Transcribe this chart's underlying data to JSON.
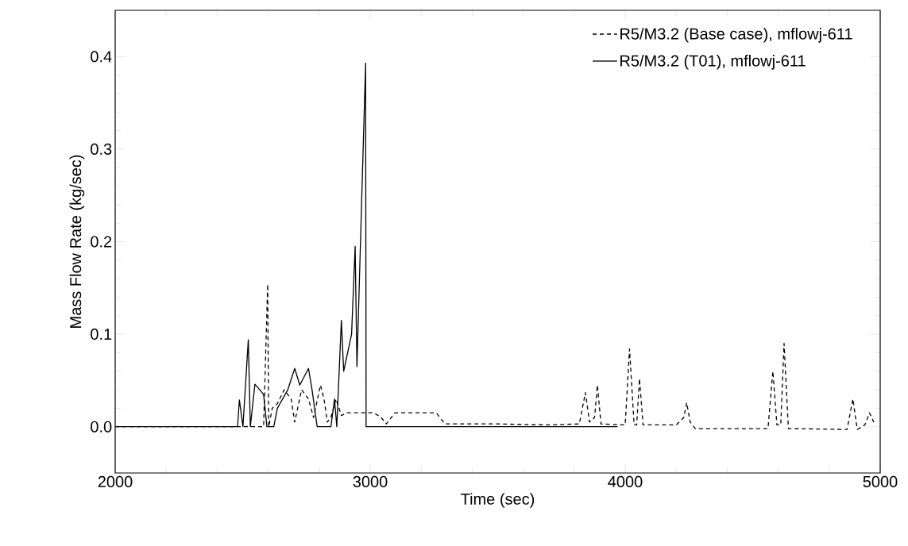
{
  "chart_data": {
    "type": "line",
    "xlabel": "Time (sec)",
    "ylabel": "Mass Flow Rate (kg/sec)",
    "xlim": [
      2000,
      5000
    ],
    "ylim": [
      -0.05,
      0.45
    ],
    "xticks": [
      2000,
      3000,
      4000,
      5000
    ],
    "yticks": [
      {
        "value": 0,
        "label": "0.0"
      },
      {
        "value": 0.1,
        "label": "0.1"
      },
      {
        "value": 0.2,
        "label": "0.2"
      },
      {
        "value": 0.3,
        "label": "0.3"
      },
      {
        "value": 0.4,
        "label": "0.4"
      }
    ],
    "grid": false,
    "legend": "top right",
    "series": [
      {
        "name": "R5/M3.2 (Base case), mflowj-611",
        "color": "#000000",
        "line_style": "dashed",
        "x": [
          2000,
          2555,
          2582,
          2598,
          2602,
          2616,
          2636,
          2663,
          2690,
          2704,
          2731,
          2758,
          2778,
          2805,
          2819,
          2832,
          2846,
          2866,
          2887,
          2907,
          3015,
          3043,
          3063,
          3097,
          3259,
          3293,
          3500,
          3700,
          3820,
          3844,
          3860,
          3880,
          3891,
          3905,
          4000,
          4017,
          4035,
          4045,
          4056,
          4070,
          4200,
          4230,
          4241,
          4255,
          4275,
          4560,
          4579,
          4595,
          4610,
          4623,
          4640,
          4870,
          4893,
          4910,
          4940,
          4958,
          4975
        ],
        "values": [
          0,
          0,
          0,
          0.154,
          0,
          0.02,
          0.025,
          0.04,
          0.03,
          0.005,
          0.04,
          0.03,
          0.01,
          0.045,
          0.03,
          0.005,
          0.01,
          0.03,
          0.012,
          0.015,
          0.015,
          0.01,
          0.003,
          0.015,
          0.015,
          0.003,
          0.003,
          0.002,
          0.003,
          0.037,
          0.005,
          0.01,
          0.045,
          0.003,
          0.002,
          0.084,
          0.002,
          0.002,
          0.052,
          0.002,
          0.002,
          0.01,
          0.026,
          0.005,
          -0.002,
          -0.002,
          0.06,
          0.002,
          0.002,
          0.09,
          -0.002,
          -0.003,
          0.03,
          -0.003,
          0.002,
          0.015,
          0.005
        ]
      },
      {
        "name": "R5/M3.2 (T01), mflowj-611",
        "color": "#000000",
        "line_style": "solid",
        "x": [
          2000,
          2480,
          2487,
          2501,
          2522,
          2530,
          2548,
          2582,
          2595,
          2622,
          2636,
          2677,
          2704,
          2724,
          2758,
          2772,
          2792,
          2846,
          2860,
          2869,
          2887,
          2896,
          2927,
          2941,
          2948,
          2982,
          2984,
          3970
        ],
        "values": [
          0,
          0,
          0.029,
          0,
          0.094,
          0,
          0.046,
          0.035,
          0,
          0,
          0.02,
          0.04,
          0.063,
          0.045,
          0.063,
          0.04,
          0,
          0,
          0.03,
          0,
          0.115,
          0.06,
          0.1,
          0.195,
          0.065,
          0.393,
          0,
          0
        ]
      }
    ]
  }
}
